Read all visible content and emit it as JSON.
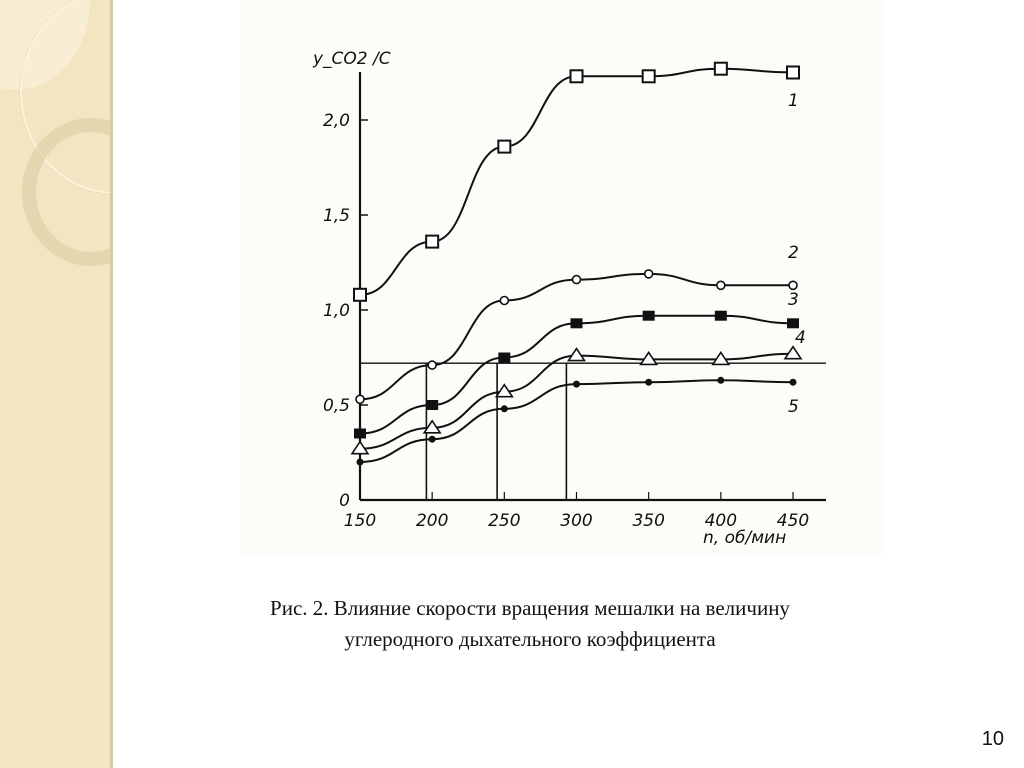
{
  "caption": {
    "line1": "Рис. 2. Влияние скорости вращения мешалки на величину",
    "line2": "углеродного дыхательного коэффициента"
  },
  "page_number": "10",
  "colors": {
    "sidebar": "#f3e4c2",
    "ink": "#111111",
    "scan_background": "#fdfcf8"
  },
  "chart_data": {
    "type": "line",
    "ylabel": "y_CO2 /C",
    "xlabel": "n, об/мин",
    "xlim": [
      150,
      450
    ],
    "ylim": [
      0,
      2.3
    ],
    "x": [
      150,
      200,
      250,
      300,
      350,
      400,
      450
    ],
    "x_ticks": [
      "150",
      "200",
      "250",
      "300",
      "350",
      "400",
      "450"
    ],
    "y_ticks": [
      {
        "v": 0,
        "label": "0"
      },
      {
        "v": 0.5,
        "label": "0,5"
      },
      {
        "v": 1.0,
        "label": "1,0"
      },
      {
        "v": 1.5,
        "label": "1,5"
      },
      {
        "v": 2.0,
        "label": "2,0"
      }
    ],
    "grid": false,
    "series": [
      {
        "name": "1",
        "marker": "open-square",
        "values": [
          1.08,
          1.36,
          1.86,
          2.23,
          2.23,
          2.27,
          2.25
        ]
      },
      {
        "name": "2",
        "marker": "open-circle",
        "values": [
          0.53,
          0.71,
          1.05,
          1.16,
          1.19,
          1.13,
          1.13
        ]
      },
      {
        "name": "3",
        "marker": "filled-square",
        "values": [
          0.35,
          0.5,
          0.75,
          0.93,
          0.97,
          0.97,
          0.93
        ]
      },
      {
        "name": "4",
        "marker": "open-triangle",
        "values": [
          0.27,
          0.38,
          0.57,
          0.76,
          0.74,
          0.74,
          0.77
        ]
      },
      {
        "name": "5",
        "marker": "filled-dot",
        "values": [
          0.2,
          0.32,
          0.48,
          0.61,
          0.62,
          0.63,
          0.62
        ]
      }
    ],
    "reference_lines": {
      "horizontal_y": 0.72,
      "vertical_x": [
        196,
        245,
        293
      ]
    }
  }
}
